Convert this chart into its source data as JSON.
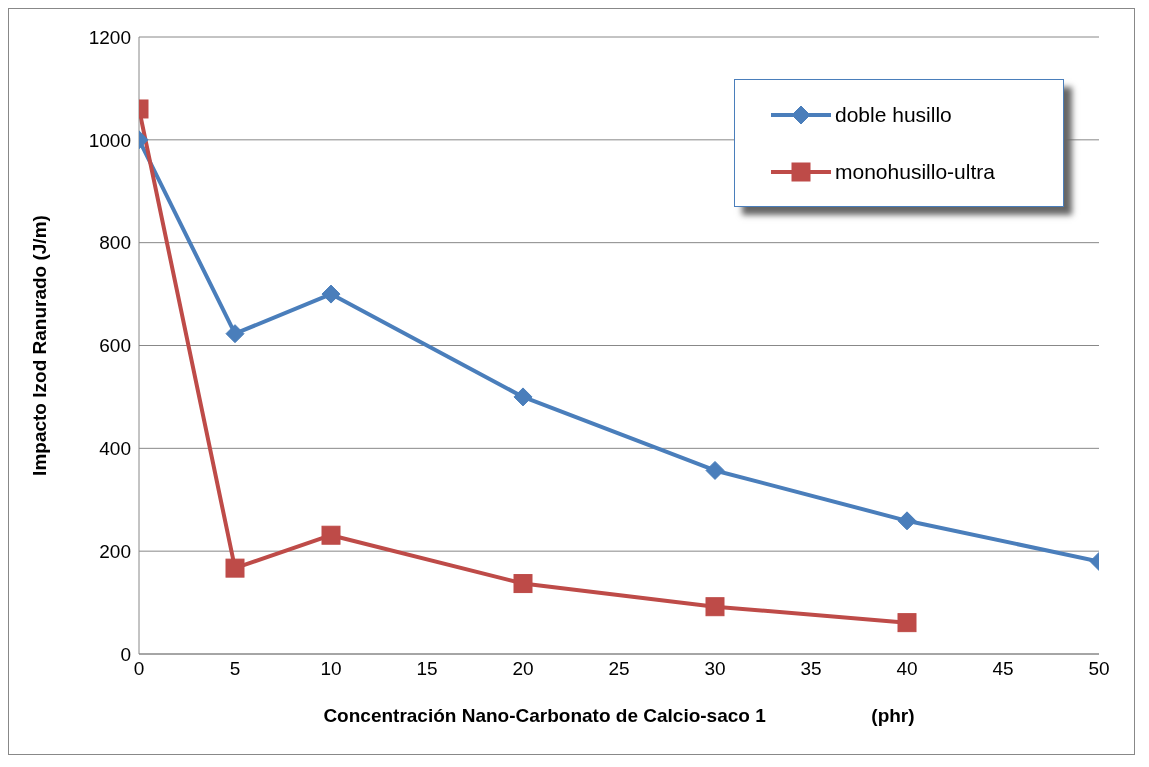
{
  "chart_data": {
    "type": "line",
    "xlabel": "Concentración Nano-Carbonato de Calcio-saco 1                    (phr)",
    "ylabel": "Impacto Izod Ranurado (J/m)",
    "x": [
      0,
      5,
      10,
      20,
      30,
      40,
      50
    ],
    "series": [
      {
        "name": "doble husillo",
        "color": "#4a7ebb",
        "marker": "diamond",
        "values": [
          1000,
          623,
          700,
          500,
          357,
          259,
          180
        ]
      },
      {
        "name": "monohusillo-ultra",
        "color": "#be4b48",
        "marker": "square",
        "x": [
          0,
          5,
          10,
          20,
          30,
          40
        ],
        "values": [
          1060,
          167,
          231,
          137,
          92,
          61
        ]
      }
    ],
    "xlim": [
      0,
      50
    ],
    "xticks": [
      0,
      5,
      10,
      15,
      20,
      25,
      30,
      35,
      40,
      45,
      50
    ],
    "ylim": [
      0,
      1200
    ],
    "yticks": [
      0,
      200,
      400,
      600,
      800,
      1000,
      1200
    ],
    "grid": "y",
    "legend": "top right",
    "line_style": "solid"
  }
}
